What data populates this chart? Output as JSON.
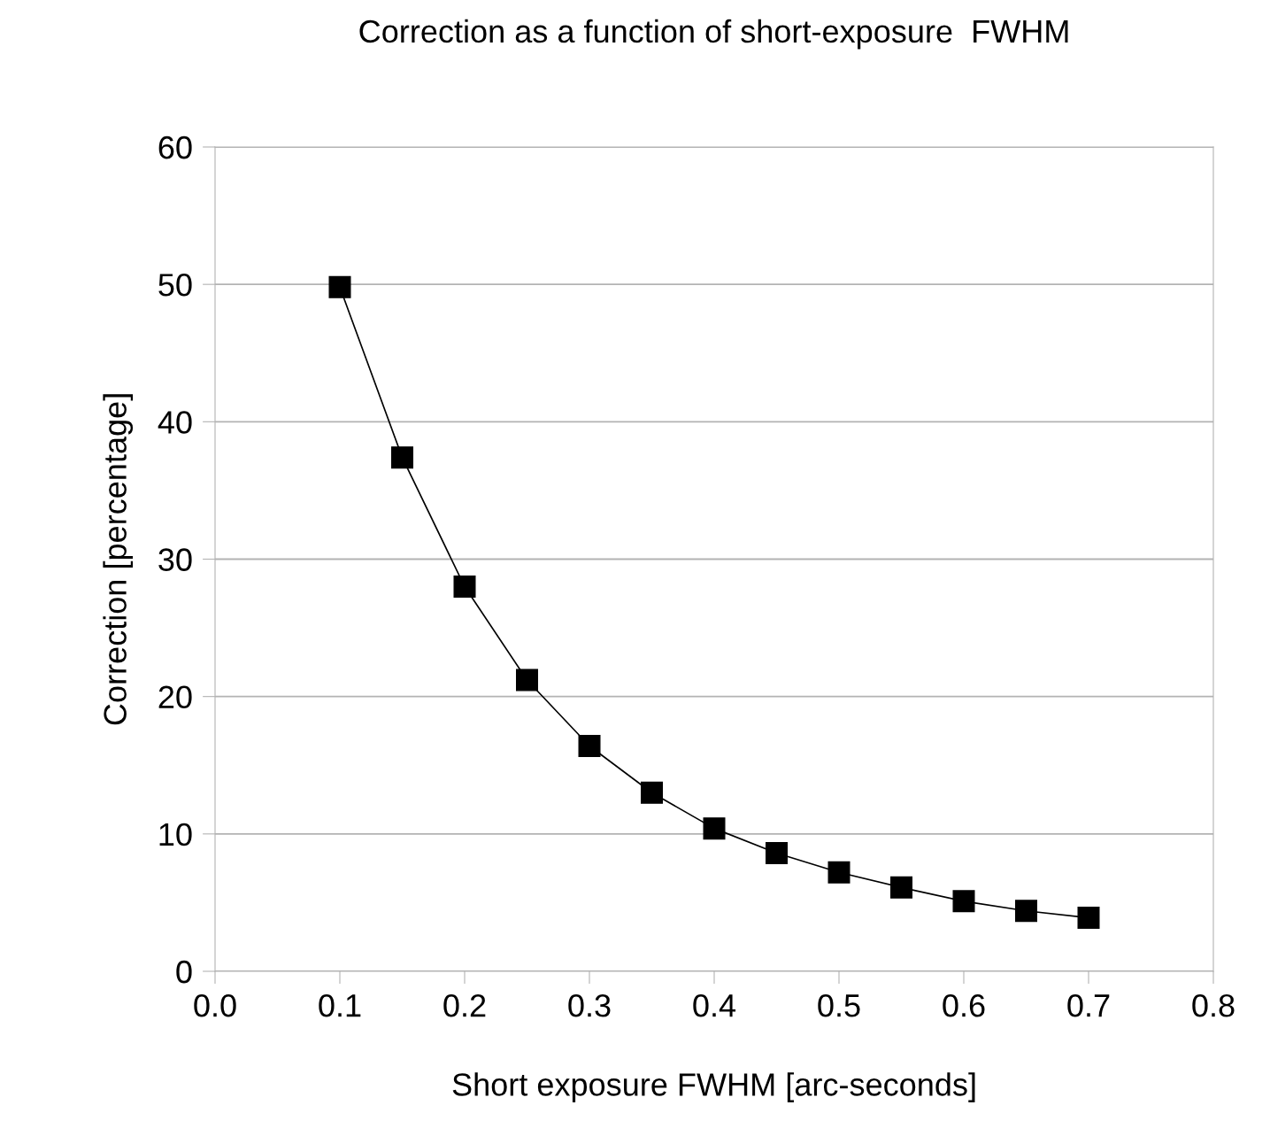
{
  "chart_data": {
    "type": "line",
    "title": "Correction as a function of short-exposure  FWHM",
    "xlabel": "Short exposure FWHM [arc-seconds]",
    "ylabel": "Correction [percentage]",
    "x": [
      0.1,
      0.15,
      0.2,
      0.25,
      0.3,
      0.35,
      0.4,
      0.45,
      0.5,
      0.55,
      0.6,
      0.65,
      0.7
    ],
    "series": [
      {
        "color": "#000000",
        "values": [
          49.8,
          37.4,
          28.0,
          21.2,
          16.4,
          13.0,
          10.4,
          8.6,
          7.2,
          6.1,
          5.1,
          4.4,
          3.9
        ]
      }
    ],
    "xlim": [
      0,
      0.8
    ],
    "xticks": [
      {
        "value": 0,
        "label": "0.0"
      },
      0.1,
      0.2,
      0.3,
      0.4,
      0.5,
      0.6,
      0.7,
      0.8
    ],
    "ylim": [
      0,
      60
    ],
    "yticks": [
      0,
      10,
      20,
      30,
      40,
      50,
      60
    ],
    "grid": "y",
    "marker": "square",
    "line_style": "solid",
    "legend": false
  }
}
